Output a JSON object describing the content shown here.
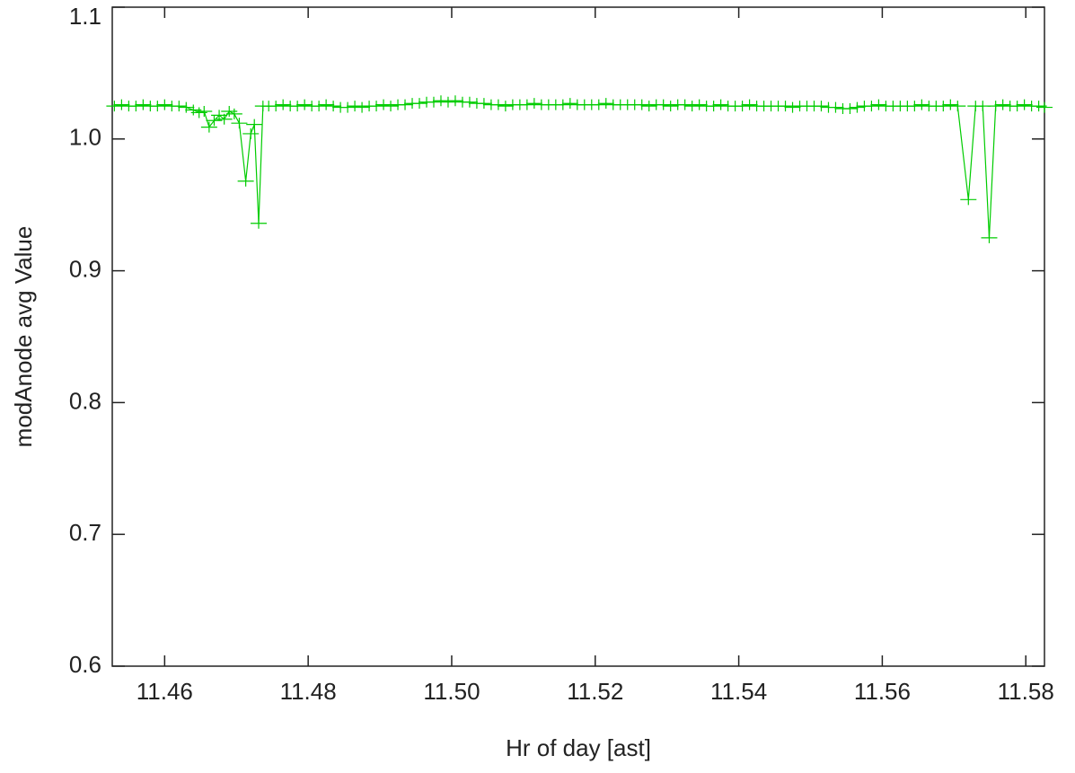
{
  "chart_data": {
    "type": "line",
    "marker": "+",
    "color": "#00cc00",
    "xlabel": "Hr of day [ast]",
    "ylabel": "modAnode avg Value",
    "xlim": [
      11.4527,
      11.5826
    ],
    "ylim": [
      0.6,
      1.1
    ],
    "xticks": [
      11.46,
      11.48,
      {
        "value": 11.5,
        "label": "11.50"
      },
      11.52,
      11.54,
      11.56,
      11.58
    ],
    "yticks": [
      0.6,
      0.7,
      0.8,
      0.9,
      {
        "value": 1,
        "label": "1.0"
      },
      1.1
    ],
    "x": [
      11.453,
      11.454,
      11.455,
      11.456,
      11.457,
      11.458,
      11.459,
      11.46,
      11.461,
      11.462,
      11.463,
      11.464,
      11.4648,
      11.4655,
      11.4662,
      11.4669,
      11.4676,
      11.4683,
      11.469,
      11.4697,
      11.4704,
      11.4713,
      11.472,
      11.4725,
      11.4731,
      11.4737,
      11.4745,
      11.4755,
      11.4765,
      11.4775,
      11.4785,
      11.4795,
      11.4805,
      11.4815,
      11.4825,
      11.4835,
      11.4845,
      11.4855,
      11.4865,
      11.4875,
      11.4885,
      11.4895,
      11.4905,
      11.4915,
      11.4925,
      11.4935,
      11.4945,
      11.4955,
      11.4965,
      11.4975,
      11.4985,
      11.4995,
      11.5005,
      11.5015,
      11.5025,
      11.5035,
      11.5045,
      11.5055,
      11.5065,
      11.5075,
      11.5085,
      11.5095,
      11.5105,
      11.5115,
      11.5125,
      11.5135,
      11.5145,
      11.5155,
      11.5165,
      11.5175,
      11.5185,
      11.5195,
      11.5205,
      11.5215,
      11.5225,
      11.5235,
      11.5245,
      11.5255,
      11.5265,
      11.5275,
      11.5285,
      11.5295,
      11.5305,
      11.5315,
      11.5325,
      11.5335,
      11.5345,
      11.5355,
      11.5365,
      11.5375,
      11.5385,
      11.5395,
      11.5405,
      11.5415,
      11.5425,
      11.5435,
      11.5445,
      11.5455,
      11.5465,
      11.5475,
      11.5485,
      11.5495,
      11.5505,
      11.5515,
      11.5525,
      11.5535,
      11.5545,
      11.5555,
      11.5565,
      11.5575,
      11.5585,
      11.5595,
      11.5605,
      11.5615,
      11.5625,
      11.5635,
      11.5645,
      11.5655,
      11.5665,
      11.5675,
      11.5685,
      11.5695,
      11.5705,
      11.572,
      11.573,
      11.574,
      11.5749,
      11.5758,
      11.5768,
      11.5778,
      11.5788,
      11.5798,
      11.5808,
      11.5818,
      11.5826
    ],
    "values": [
      1.025,
      1.026,
      1.025,
      1.025,
      1.026,
      1.025,
      1.025,
      1.026,
      1.025,
      1.025,
      1.024,
      1.022,
      1.02,
      1.021,
      1.009,
      1.014,
      1.018,
      1.015,
      1.021,
      1.019,
      1.012,
      0.968,
      1.004,
      1.011,
      0.936,
      1.025,
      1.025,
      1.025,
      1.026,
      1.025,
      1.025,
      1.026,
      1.025,
      1.025,
      1.026,
      1.025,
      1.024,
      1.024,
      1.025,
      1.024,
      1.025,
      1.025,
      1.026,
      1.025,
      1.026,
      1.026,
      1.027,
      1.027,
      1.028,
      1.028,
      1.029,
      1.028,
      1.029,
      1.028,
      1.028,
      1.027,
      1.027,
      1.026,
      1.026,
      1.025,
      1.026,
      1.026,
      1.026,
      1.027,
      1.026,
      1.026,
      1.026,
      1.026,
      1.027,
      1.026,
      1.026,
      1.026,
      1.026,
      1.027,
      1.026,
      1.026,
      1.026,
      1.026,
      1.026,
      1.025,
      1.026,
      1.026,
      1.025,
      1.026,
      1.026,
      1.025,
      1.026,
      1.025,
      1.025,
      1.026,
      1.025,
      1.025,
      1.025,
      1.026,
      1.025,
      1.025,
      1.025,
      1.025,
      1.025,
      1.024,
      1.025,
      1.025,
      1.025,
      1.025,
      1.024,
      1.024,
      1.023,
      1.023,
      1.024,
      1.025,
      1.025,
      1.026,
      1.025,
      1.025,
      1.025,
      1.025,
      1.025,
      1.026,
      1.025,
      1.025,
      1.025,
      1.026,
      1.025,
      0.954,
      1.025,
      1.025,
      0.925,
      1.025,
      1.026,
      1.025,
      1.025,
      1.026,
      1.025,
      1.025,
      1.024
    ]
  }
}
